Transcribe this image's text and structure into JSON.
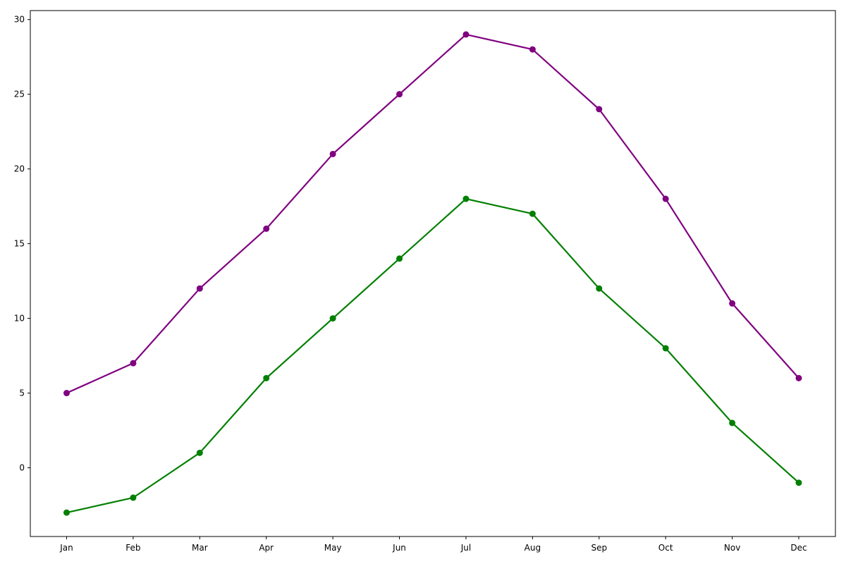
{
  "chart_data": {
    "type": "line",
    "title": "",
    "xlabel": "",
    "ylabel": "",
    "categories": [
      "Jan",
      "Feb",
      "Mar",
      "Apr",
      "May",
      "Jun",
      "Jul",
      "Aug",
      "Sep",
      "Oct",
      "Nov",
      "Dec"
    ],
    "ylim": [
      -4.6,
      30.6
    ],
    "yticks": [
      0,
      5,
      10,
      15,
      20,
      25,
      30
    ],
    "grid": false,
    "legend": "none",
    "series": [
      {
        "color": "#800080",
        "marker": "circle",
        "values": [
          5,
          7,
          12,
          16,
          21,
          25,
          29,
          28,
          24,
          18,
          11,
          6
        ]
      },
      {
        "color": "#008000",
        "marker": "circle",
        "values": [
          -3,
          -2,
          1,
          6,
          10,
          14,
          18,
          17,
          12,
          8,
          3,
          -1
        ]
      }
    ]
  }
}
